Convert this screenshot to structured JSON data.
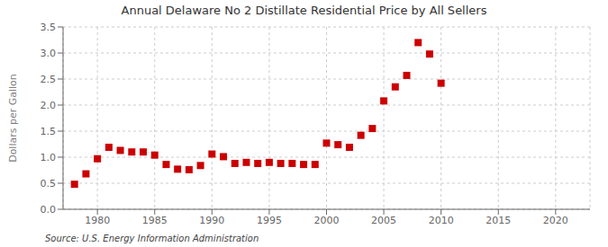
{
  "chart_data": {
    "type": "scatter",
    "title": "Annual Delaware No 2 Distillate Residential Price by All Sellers",
    "y_label": "Dollars per Gallon",
    "annotations": [
      "Source: U.S. Energy Information Administration"
    ],
    "color": "#cc0000",
    "marker": "square",
    "grid": true,
    "x": [
      1978,
      1979,
      1980,
      1981,
      1982,
      1983,
      1984,
      1985,
      1986,
      1987,
      1988,
      1989,
      1990,
      1991,
      1992,
      1993,
      1994,
      1995,
      1996,
      1997,
      1998,
      1999,
      2000,
      2001,
      2002,
      2003,
      2004,
      2005,
      2006,
      2007,
      2008,
      2009,
      2010
    ],
    "values": [
      0.48,
      0.68,
      0.97,
      1.19,
      1.13,
      1.1,
      1.1,
      1.04,
      0.86,
      0.77,
      0.76,
      0.84,
      1.06,
      1.01,
      0.88,
      0.9,
      0.88,
      0.9,
      0.88,
      0.88,
      0.86,
      0.86,
      1.27,
      1.24,
      1.19,
      1.42,
      1.55,
      2.08,
      2.35,
      2.57,
      3.2,
      2.98,
      2.42
    ],
    "xlim": [
      1977,
      2023
    ],
    "xticks": [
      1980,
      1985,
      1990,
      1995,
      2000,
      2005,
      2010,
      2015,
      2020
    ],
    "ylim": [
      0.0,
      3.5
    ],
    "yticks": [
      {
        "value": 0,
        "label": "0.0"
      },
      0.5,
      {
        "value": 1,
        "label": "1.0"
      },
      1.5,
      {
        "value": 2,
        "label": "2.0"
      },
      2.5,
      {
        "value": 3,
        "label": "3.0"
      },
      3.5
    ]
  }
}
